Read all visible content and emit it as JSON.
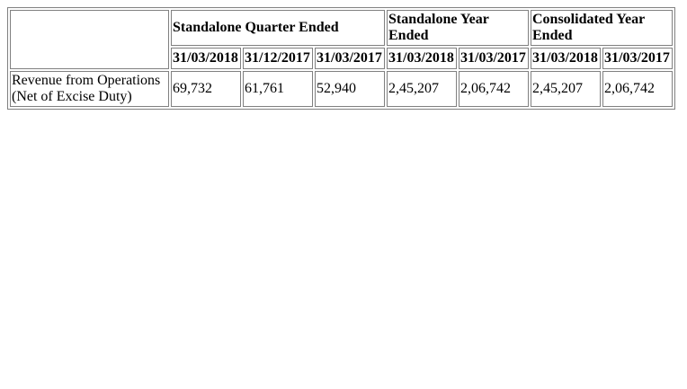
{
  "table": {
    "groups": [
      {
        "label": "Standalone Quarter Ended"
      },
      {
        "label": "Standalone Year Ended"
      },
      {
        "label": "Consolidated Year Ended"
      }
    ],
    "dates": [
      "31/03/2018",
      "31/12/2017",
      "31/03/2017",
      "31/03/2018",
      "31/03/2017",
      "31/03/2018",
      "31/03/2017"
    ],
    "rows": [
      {
        "label_line1": "Revenue from Operations",
        "label_line2": "(Net of Excise Duty)",
        "values": [
          "69,732",
          "61,761",
          "52,940",
          "2,45,207",
          "2,06,742",
          "2,45,207",
          "2,06,742"
        ]
      }
    ]
  }
}
